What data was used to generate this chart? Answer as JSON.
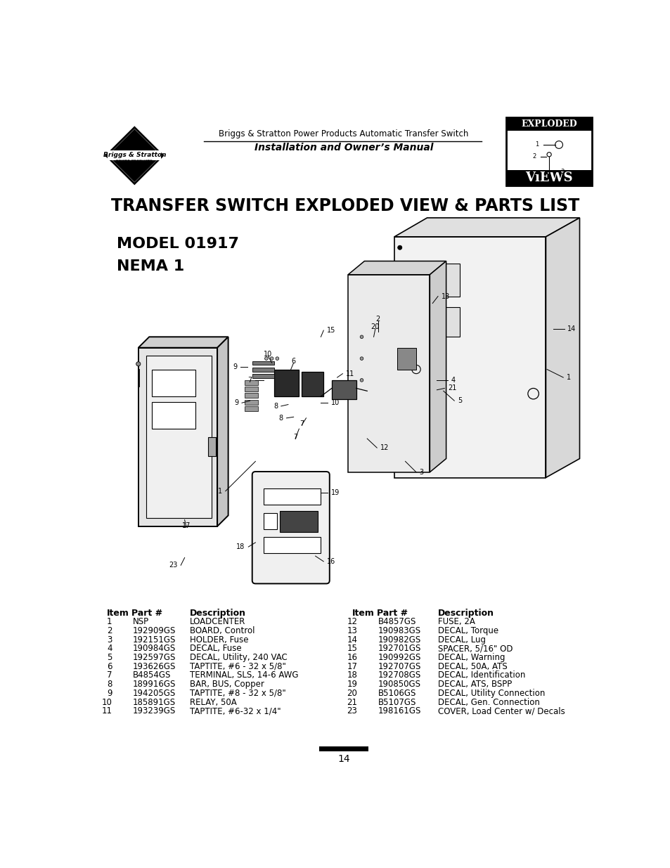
{
  "bg_color": "#ffffff",
  "page_title": "TRANSFER SWITCH EXPLODED VIEW & PARTS LIST",
  "model_line1": "MODEL 01917",
  "model_line2": "NEMA 1",
  "header_line1": "Briggs & Stratton Power Products Automatic Transfer Switch",
  "header_line2": "Installation and Owner’s Manual",
  "page_number": "14",
  "parts_left": [
    [
      "1",
      "NSP",
      "LOADCENTER"
    ],
    [
      "2",
      "192909GS",
      "BOARD, Control"
    ],
    [
      "3",
      "192151GS",
      "HOLDER, Fuse"
    ],
    [
      "4",
      "190984GS",
      "DECAL, Fuse"
    ],
    [
      "5",
      "192597GS",
      "DECAL, Utility, 240 VAC"
    ],
    [
      "6",
      "193626GS",
      "TAPTITE, #6 - 32 x 5/8\""
    ],
    [
      "7",
      "B4854GS",
      "TERMINAL, SLS, 14-6 AWG"
    ],
    [
      "8",
      "189916GS",
      "BAR, BUS, Copper"
    ],
    [
      "9",
      "194205GS",
      "TAPTITE, #8 - 32 x 5/8\""
    ],
    [
      "10",
      "185891GS",
      "RELAY, 50A"
    ],
    [
      "11",
      "193239GS",
      "TAPTITE, #6-32 x 1/4\""
    ]
  ],
  "parts_right": [
    [
      "12",
      "B4857GS",
      "FUSE, 2A"
    ],
    [
      "13",
      "190983GS",
      "DECAL, Torque"
    ],
    [
      "14",
      "190982GS",
      "DECAL, Lug"
    ],
    [
      "15",
      "192701GS",
      "SPACER, 5/16\" OD"
    ],
    [
      "16",
      "190992GS",
      "DECAL, Warning"
    ],
    [
      "17",
      "192707GS",
      "DECAL, 50A, ATS"
    ],
    [
      "18",
      "192708GS",
      "DECAL, Identification"
    ],
    [
      "19",
      "190850GS",
      "DECAL, ATS, BSPP"
    ],
    [
      "20",
      "B5106GS",
      "DECAL, Utility Connection"
    ],
    [
      "21",
      "B5107GS",
      "DECAL, Gen. Connection"
    ],
    [
      "23",
      "198161GS",
      "COVER, Load Center w/ Decals"
    ]
  ]
}
